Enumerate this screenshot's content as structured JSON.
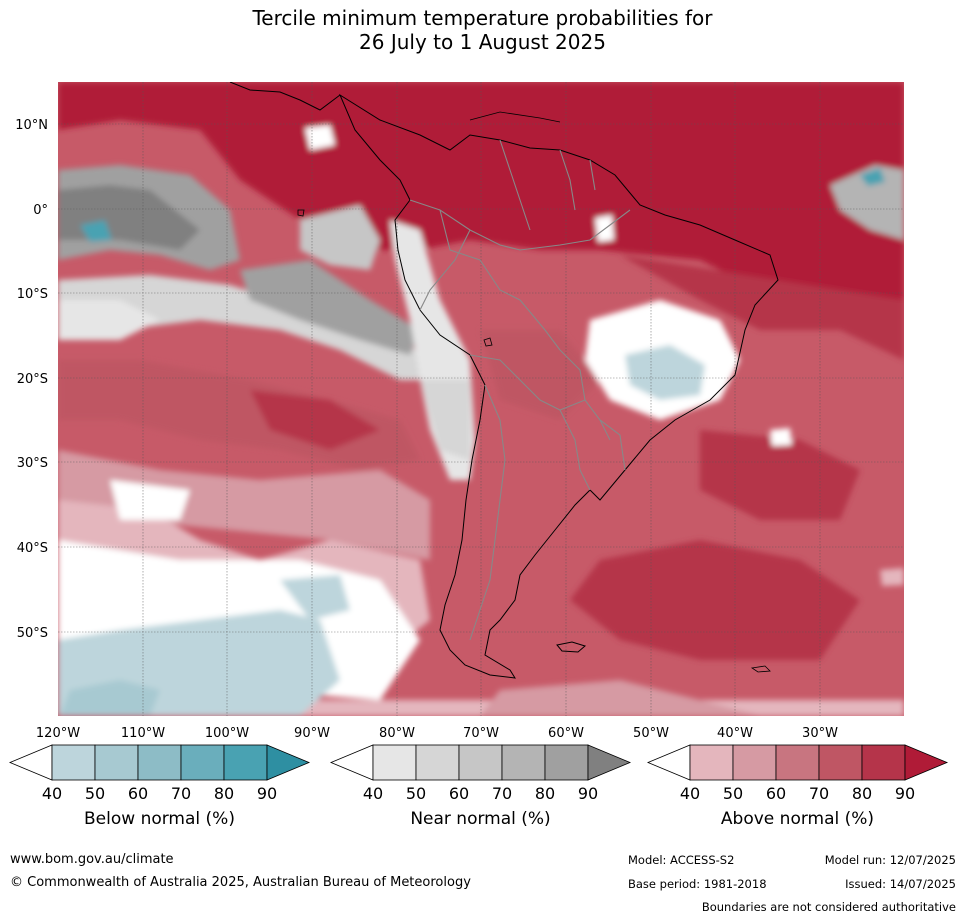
{
  "title": {
    "line1": "Tercile minimum temperature probabilities for",
    "line2": "26 July to 1 August 2025"
  },
  "map": {
    "lat_labels": [
      "10°N",
      "0°",
      "10°S",
      "20°S",
      "30°S",
      "40°S",
      "50°S"
    ],
    "lon_labels": [
      "120°W",
      "110°W",
      "100°W",
      "90°W",
      "80°W",
      "70°W",
      "60°W",
      "50°W",
      "40°W",
      "30°W"
    ]
  },
  "colorbars": [
    {
      "title": "Below normal (%)",
      "ticks": [
        "40",
        "50",
        "60",
        "70",
        "80",
        "90"
      ],
      "colors": [
        "#ffffff",
        "#bdd5dc",
        "#a7c9d1",
        "#8dbcc6",
        "#6aaebc",
        "#49a2b2",
        "#2e8fa2"
      ]
    },
    {
      "title": "Near normal (%)",
      "ticks": [
        "40",
        "50",
        "60",
        "70",
        "80",
        "90"
      ],
      "colors": [
        "#ffffff",
        "#e6e6e6",
        "#d6d6d6",
        "#c6c6c6",
        "#b4b4b4",
        "#a0a0a0",
        "#808080"
      ]
    },
    {
      "title": "Above normal (%)",
      "ticks": [
        "40",
        "50",
        "60",
        "70",
        "80",
        "90"
      ],
      "colors": [
        "#ffffff",
        "#e4b6bd",
        "#d69aa3",
        "#c87580",
        "#bf5664",
        "#b5344a",
        "#b01b37"
      ]
    }
  ],
  "footer": {
    "website": "www.bom.gov.au/climate",
    "copyright": "© Commonwealth of Australia 2025, Australian Bureau of Meteorology",
    "model": "Model: ACCESS-S2",
    "model_run": "Model run: 12/07/2025",
    "base_period": "Base period: 1981-2018",
    "issued": "Issued: 14/07/2025",
    "disclaimer": "Boundaries are not considered authoritative"
  }
}
